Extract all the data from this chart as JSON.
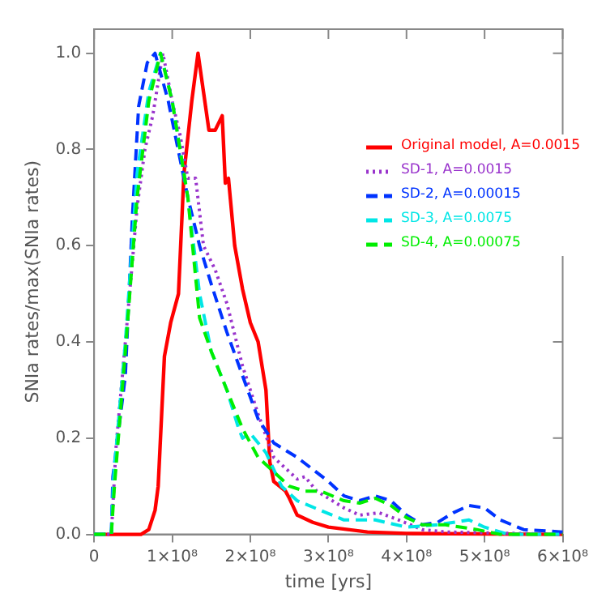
{
  "chart_data": {
    "type": "line",
    "xlabel": "time [yrs]",
    "ylabel": "SNIa rates/max(SNIa rates)",
    "xlim": [
      0,
      600000000.0
    ],
    "ylim": [
      0,
      1.05
    ],
    "xticks": [
      0,
      {
        "value": 100000000.0,
        "label": "1×10⁸"
      },
      {
        "value": 200000000.0,
        "label": "2×10⁸"
      },
      {
        "value": 300000000.0,
        "label": "3×10⁸"
      },
      {
        "value": 400000000.0,
        "label": "4×10⁸"
      },
      {
        "value": 500000000.0,
        "label": "5×10⁸"
      },
      {
        "value": 600000000.0,
        "label": "6×10⁸"
      }
    ],
    "yticks": [
      {
        "value": 0,
        "label": "0.0"
      },
      {
        "value": 0.2,
        "label": "0.2"
      },
      {
        "value": 0.4,
        "label": "0.4"
      },
      {
        "value": 0.6,
        "label": "0.6"
      },
      {
        "value": 0.8,
        "label": "0.8"
      },
      {
        "value": 1,
        "label": "1.0"
      }
    ],
    "grid": false,
    "legend": "right",
    "marker": "none",
    "series": [
      {
        "name": "Original model, A=0.0015",
        "color": "#ff0000",
        "line_style": "solid",
        "x": [
          0,
          60000000.0,
          70000000.0,
          78000000.0,
          82000000.0,
          90000000.0,
          98000000.0,
          108000000.0,
          115000000.0,
          125000000.0,
          133000000.0,
          140000000.0,
          147000000.0,
          155000000.0,
          164000000.0,
          168000000.0,
          172000000.0,
          180000000.0,
          190000000.0,
          200000000.0,
          210000000.0,
          220000000.0,
          225000000.0,
          230000000.0,
          245000000.0,
          250000000.0,
          260000000.0,
          280000000.0,
          300000000.0,
          350000000.0,
          400000000.0,
          600000000.0
        ],
        "values": [
          0,
          0,
          0.01,
          0.05,
          0.1,
          0.37,
          0.44,
          0.5,
          0.75,
          0.9,
          1.0,
          0.92,
          0.84,
          0.84,
          0.87,
          0.73,
          0.74,
          0.6,
          0.51,
          0.44,
          0.4,
          0.3,
          0.15,
          0.11,
          0.09,
          0.075,
          0.04,
          0.025,
          0.015,
          0.005,
          0.002,
          0
        ]
      },
      {
        "name": "SD-1, A=0.0015",
        "color": "#9933cc",
        "line_style": "dotted",
        "x": [
          0,
          22000000.0,
          28000000.0,
          40000000.0,
          55000000.0,
          65000000.0,
          75000000.0,
          88000000.0,
          100000000.0,
          110000000.0,
          120000000.0,
          130000000.0,
          140000000.0,
          155000000.0,
          170000000.0,
          190000000.0,
          210000000.0,
          230000000.0,
          250000000.0,
          260000000.0,
          270000000.0,
          285000000.0,
          320000000.0,
          340000000.0,
          365000000.0,
          390000000.0,
          420000000.0,
          450000000.0,
          600000000.0
        ],
        "values": [
          0,
          0,
          0.18,
          0.4,
          0.68,
          0.8,
          0.87,
          1.0,
          0.9,
          0.83,
          0.74,
          0.74,
          0.6,
          0.55,
          0.48,
          0.35,
          0.25,
          0.16,
          0.13,
          0.115,
          0.12,
          0.09,
          0.055,
          0.04,
          0.045,
          0.03,
          0.01,
          0.005,
          0
        ]
      },
      {
        "name": "SD-2, A=0.00015",
        "color": "#0033ff",
        "line_style": "dashed",
        "x": [
          0,
          22000000.0,
          24000000.0,
          40000000.0,
          49000000.0,
          57000000.0,
          68000000.0,
          78000000.0,
          95000000.0,
          120000000.0,
          135000000.0,
          150000000.0,
          170000000.0,
          190000000.0,
          210000000.0,
          230000000.0,
          260000000.0,
          280000000.0,
          300000000.0,
          320000000.0,
          340000000.0,
          360000000.0,
          380000000.0,
          400000000.0,
          420000000.0,
          440000000.0,
          460000000.0,
          480000000.0,
          500000000.0,
          520000000.0,
          550000000.0,
          600000000.0
        ],
        "values": [
          0,
          0,
          0.12,
          0.33,
          0.66,
          0.89,
          0.98,
          1.0,
          0.9,
          0.7,
          0.6,
          0.52,
          0.42,
          0.33,
          0.24,
          0.19,
          0.16,
          0.135,
          0.11,
          0.08,
          0.07,
          0.08,
          0.07,
          0.04,
          0.02,
          0.025,
          0.045,
          0.06,
          0.055,
          0.03,
          0.01,
          0.005
        ]
      },
      {
        "name": "SD-3, A=0.0075",
        "color": "#00e6e6",
        "line_style": "dashed",
        "x": [
          0,
          22000000.0,
          25000000.0,
          40000000.0,
          55000000.0,
          70000000.0,
          85000000.0,
          100000000.0,
          120000000.0,
          135000000.0,
          150000000.0,
          170000000.0,
          185000000.0,
          190000000.0,
          200000000.0,
          220000000.0,
          240000000.0,
          260000000.0,
          290000000.0,
          320000000.0,
          360000000.0,
          400000000.0,
          440000000.0,
          480000000.0,
          500000000.0,
          530000000.0,
          600000000.0
        ],
        "values": [
          0,
          0,
          0.12,
          0.4,
          0.75,
          0.92,
          1.0,
          0.9,
          0.7,
          0.5,
          0.38,
          0.3,
          0.22,
          0.2,
          0.21,
          0.17,
          0.1,
          0.07,
          0.05,
          0.03,
          0.03,
          0.015,
          0.02,
          0.03,
          0.015,
          0,
          0
        ]
      },
      {
        "name": "SD-4, A=0.00075",
        "color": "#00ee00",
        "line_style": "dashed",
        "x": [
          0,
          22000000.0,
          26000000.0,
          40000000.0,
          55000000.0,
          70000000.0,
          85000000.0,
          100000000.0,
          120000000.0,
          135000000.0,
          150000000.0,
          170000000.0,
          190000000.0,
          210000000.0,
          230000000.0,
          250000000.0,
          270000000.0,
          290000000.0,
          320000000.0,
          340000000.0,
          360000000.0,
          380000000.0,
          400000000.0,
          420000000.0,
          450000000.0,
          490000000.0,
          520000000.0,
          600000000.0
        ],
        "values": [
          0,
          0,
          0.1,
          0.38,
          0.7,
          0.9,
          1.0,
          0.9,
          0.7,
          0.45,
          0.38,
          0.3,
          0.22,
          0.16,
          0.13,
          0.1,
          0.09,
          0.09,
          0.07,
          0.065,
          0.075,
          0.06,
          0.035,
          0.02,
          0.02,
          0.01,
          0,
          0
        ]
      }
    ]
  }
}
